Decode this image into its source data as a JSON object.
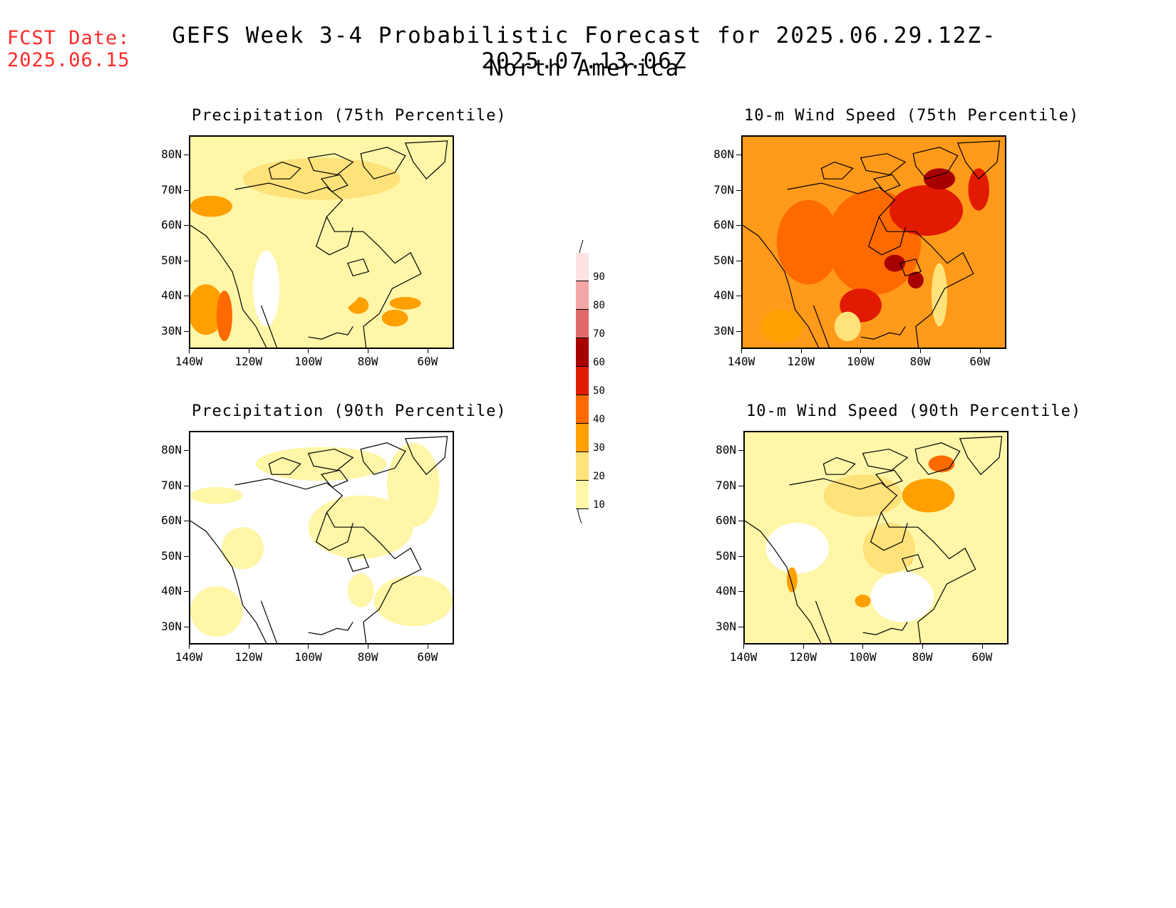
{
  "header": {
    "fcst_label": "FCST Date:",
    "fcst_date": "2025.06.15",
    "title_line1": "GEFS Week 3-4 Probabilistic Forecast for 2025.06.29.12Z-2025.07.13.06Z",
    "title_line2": "North America"
  },
  "axes": {
    "lat_labels": [
      "80N",
      "70N",
      "60N",
      "50N",
      "40N",
      "30N"
    ],
    "lon_labels": [
      "140W",
      "120W",
      "100W",
      "80W",
      "60W"
    ]
  },
  "panels": [
    {
      "id": "precip-75",
      "title": "Precipitation (75th Percentile)",
      "base_color": "#fff6a8"
    },
    {
      "id": "wind-75",
      "title": "10-m Wind Speed (75th Percentile)",
      "base_color": "#ff9a1a"
    },
    {
      "id": "precip-90",
      "title": "Precipitation (90th Percentile)",
      "base_color": "#ffffff"
    },
    {
      "id": "wind-90",
      "title": "10-m Wind Speed (90th Percentile)",
      "base_color": "#fff6a8"
    }
  ],
  "colorbar": {
    "labels": [
      "90",
      "80",
      "70",
      "60",
      "50",
      "40",
      "30",
      "20",
      "10"
    ],
    "colors": [
      "#fde3e3",
      "#f4a6a6",
      "#e06a6a",
      "#a80000",
      "#e21a00",
      "#ff6a00",
      "#ffa000",
      "#ffe27a",
      "#fff6a8"
    ]
  }
}
